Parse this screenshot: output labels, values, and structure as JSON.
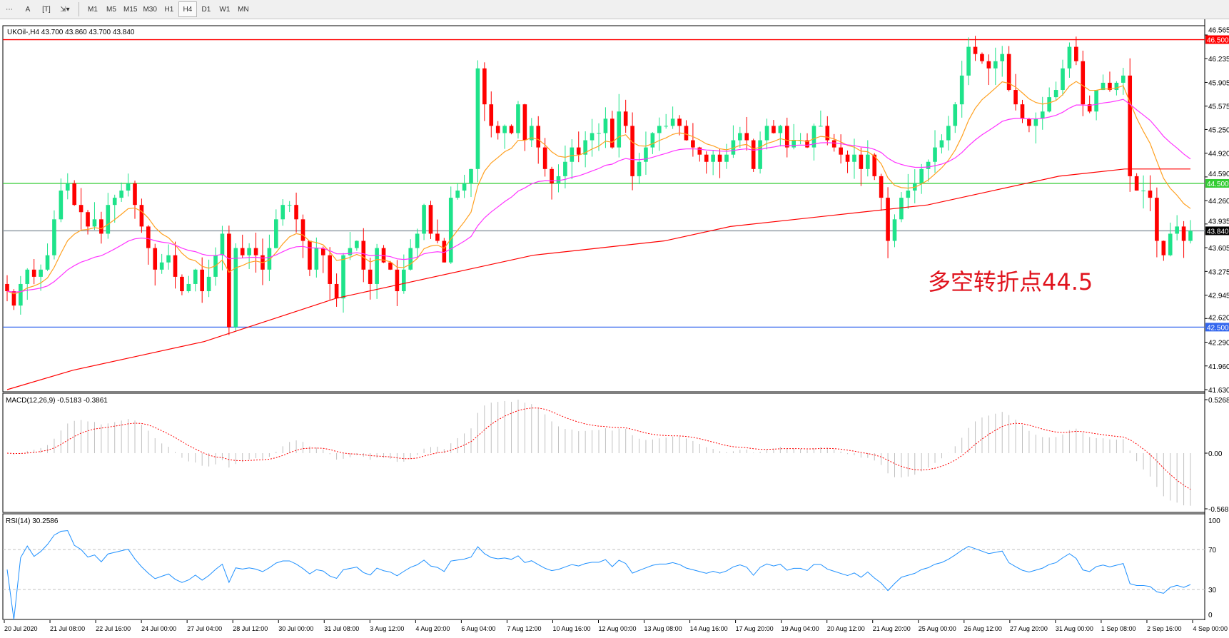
{
  "toolbar": {
    "items": [
      "M1",
      "M5",
      "M15",
      "M30",
      "H1",
      "H4",
      "D1",
      "W1",
      "MN"
    ],
    "active": "H4",
    "icons": [
      "period-separator-icon",
      "text-a-icon",
      "text-label-icon",
      "arrows-icon"
    ]
  },
  "main": {
    "header": "UKOil-,H4  43.700 43.860 43.700 43.840",
    "price_axis": [
      "46.565",
      "46.235",
      "45.905",
      "45.575",
      "45.250",
      "44.920",
      "44.590",
      "44.260",
      "43.935",
      "43.605",
      "43.275",
      "42.945",
      "42.620",
      "42.290",
      "41.960",
      "41.630"
    ],
    "levels": [
      {
        "value": 46.5,
        "label": "46.500",
        "color": "#ff0000"
      },
      {
        "value": 44.5,
        "label": "44.500",
        "color": "#33cc33"
      },
      {
        "value": 42.5,
        "label": "42.500",
        "color": "#3366ee"
      },
      {
        "value": 43.84,
        "label": "43.840",
        "color": "#000000"
      }
    ],
    "annotation": "多空转折点44.5"
  },
  "macd": {
    "header": "MACD(12,26,9) -0.5183 -0.3861",
    "axis": [
      "0.5268",
      "0.00",
      "-0.5681"
    ]
  },
  "rsi": {
    "header": "RSI(14) 30.2586",
    "axis": [
      "100",
      "70",
      "30",
      "0"
    ]
  },
  "time_axis": [
    "20 Jul 2020",
    "21 Jul 08:00",
    "22 Jul 16:00",
    "24 Jul 00:00",
    "27 Jul 04:00",
    "28 Jul 12:00",
    "30 Jul 00:00",
    "31 Jul 08:00",
    "3 Aug 12:00",
    "4 Aug 20:00",
    "6 Aug 04:00",
    "7 Aug 12:00",
    "10 Aug 16:00",
    "12 Aug 00:00",
    "13 Aug 08:00",
    "14 Aug 16:00",
    "17 Aug 20:00",
    "19 Aug 04:00",
    "20 Aug 12:00",
    "21 Aug 20:00",
    "25 Aug 00:00",
    "26 Aug 12:00",
    "27 Aug 20:00",
    "31 Aug 00:00",
    "1 Sep 08:00",
    "2 Sep 16:00",
    "4 Sep 00:00"
  ],
  "chart_data": {
    "type": "candlestick",
    "symbol": "UKOil-",
    "timeframe": "H4",
    "ylim": [
      41.63,
      46.565
    ],
    "closes": [
      43.0,
      42.8,
      43.1,
      43.3,
      43.2,
      43.3,
      43.5,
      44.0,
      44.4,
      44.5,
      44.2,
      44.1,
      43.9,
      44.0,
      43.8,
      44.2,
      44.3,
      44.4,
      44.5,
      44.2,
      43.9,
      43.6,
      43.3,
      43.4,
      43.5,
      43.2,
      43.0,
      43.1,
      43.3,
      43.0,
      43.2,
      43.5,
      43.8,
      42.5,
      43.6,
      43.5,
      43.6,
      43.5,
      43.3,
      43.6,
      44.0,
      44.2,
      44.2,
      44.0,
      43.7,
      43.3,
      43.6,
      43.5,
      43.1,
      42.9,
      43.5,
      43.6,
      43.7,
      43.3,
      43.1,
      43.6,
      43.4,
      43.3,
      43.0,
      43.3,
      43.6,
      43.8,
      44.2,
      43.8,
      43.7,
      43.4,
      44.3,
      44.4,
      44.5,
      44.7,
      46.1,
      45.6,
      45.3,
      45.2,
      45.3,
      45.2,
      45.6,
      45.1,
      45.3,
      45.0,
      44.7,
      44.5,
      44.6,
      44.8,
      45.0,
      44.9,
      45.1,
      45.2,
      45.2,
      45.4,
      45.0,
      45.5,
      45.3,
      44.6,
      44.8,
      45.0,
      45.2,
      45.3,
      45.3,
      45.4,
      45.3,
      45.1,
      45.0,
      44.9,
      44.8,
      44.9,
      44.8,
      44.9,
      45.1,
      45.2,
      45.1,
      44.7,
      45.1,
      45.3,
      45.2,
      45.3,
      45.0,
      45.1,
      45.1,
      45.0,
      45.3,
      45.3,
      45.1,
      45.0,
      44.9,
      44.8,
      44.9,
      44.7,
      44.9,
      44.6,
      44.3,
      43.7,
      44.0,
      44.3,
      44.4,
      44.5,
      44.7,
      44.8,
      45.0,
      45.1,
      45.3,
      45.6,
      46.0,
      46.4,
      46.3,
      46.2,
      46.1,
      46.2,
      46.3,
      45.8,
      45.6,
      45.4,
      45.3,
      45.4,
      45.5,
      45.7,
      45.8,
      46.1,
      46.4,
      46.2,
      45.6,
      45.5,
      45.8,
      45.9,
      45.8,
      45.9,
      46.0,
      44.6,
      44.4,
      44.4,
      44.3,
      43.7,
      43.5,
      43.8,
      43.9,
      43.7,
      43.84
    ],
    "ma_slow": [
      41.63,
      41.9,
      42.1,
      42.3,
      42.6,
      42.9,
      43.1,
      43.3,
      43.5,
      43.6,
      43.7,
      43.9,
      44.0,
      44.1,
      44.2,
      44.4,
      44.6,
      44.7,
      44.7
    ],
    "colors": {
      "bull": "#1ee38a",
      "bear": "#ff0000",
      "ma_fast": "#ffa020",
      "ma_mid": "#ff33ff",
      "ma_slow": "#ff0000",
      "macd_hist": "#c0c0c0",
      "macd_signal": "#ff0000",
      "rsi": "#1e90ff"
    }
  }
}
